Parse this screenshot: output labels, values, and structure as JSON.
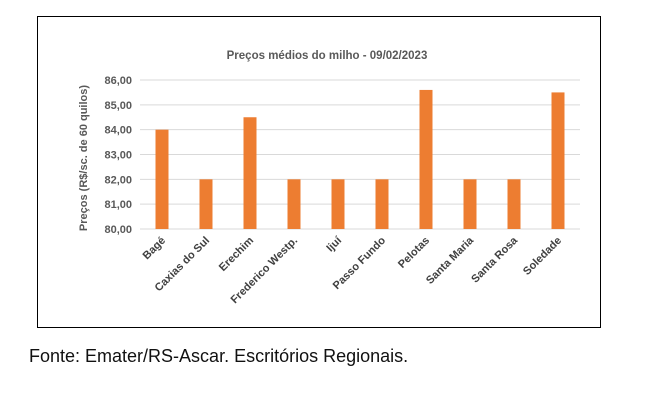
{
  "chart_data": {
    "type": "bar",
    "title": "Preços médios do milho - 09/02/2023",
    "xlabel": "",
    "ylabel": "Preços (R$/sc. de 60 quilos)",
    "categories": [
      "Bagé",
      "Caxias do Sul",
      "Erechim",
      "Frederico Westp.",
      "Ijuí",
      "Passo Fundo",
      "Pelotas",
      "Santa Maria",
      "Santa Rosa",
      "Soledade"
    ],
    "values": [
      84.0,
      82.0,
      84.5,
      82.0,
      82.0,
      82.0,
      85.6,
      82.0,
      82.0,
      85.5
    ],
    "ylim": [
      80,
      86
    ],
    "yticks": [
      "80,00",
      "81,00",
      "82,00",
      "83,00",
      "84,00",
      "85,00",
      "86,00"
    ],
    "grid": true,
    "bar_color": "#ED7D31"
  },
  "caption": "Fonte: Emater/RS-Ascar. Escritórios Regionais."
}
